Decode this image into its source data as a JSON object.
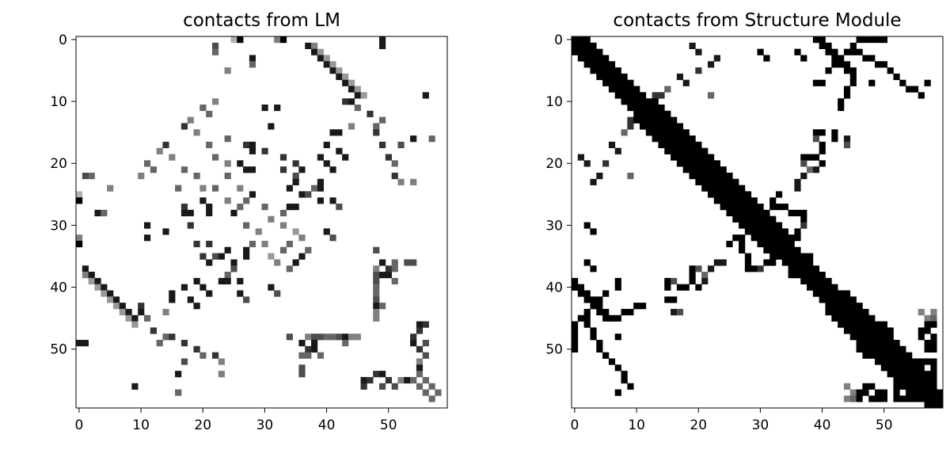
{
  "chart_data": [
    {
      "type": "heatmap",
      "title": "contacts from LM",
      "xlabel": "",
      "ylabel": "",
      "grid": false,
      "size": [
        60,
        60
      ],
      "xlim": [
        -0.5,
        59.5
      ],
      "ylim": [
        59.5,
        -0.5
      ],
      "xticks": [
        0,
        10,
        20,
        30,
        40,
        50
      ],
      "yticks": [
        0,
        10,
        20,
        30,
        40,
        50
      ],
      "colormap": "Greys",
      "value_range": [
        0,
        1
      ],
      "symmetric": true,
      "cells": [
        [
          0,
          26,
          1
        ],
        [
          0,
          33,
          1
        ],
        [
          0,
          49,
          0.9
        ],
        [
          0,
          32,
          0.5
        ],
        [
          0,
          25,
          0.3
        ],
        [
          1,
          37,
          0.9
        ],
        [
          1,
          38,
          0.5
        ],
        [
          1,
          49,
          0.9
        ],
        [
          2,
          38,
          0.9
        ],
        [
          2,
          39,
          0.4
        ],
        [
          3,
          39,
          0.9
        ],
        [
          3,
          40,
          0.4
        ],
        [
          4,
          40,
          0.9
        ],
        [
          4,
          41,
          0.4
        ],
        [
          5,
          41,
          0.9
        ],
        [
          5,
          42,
          0.4
        ],
        [
          6,
          42,
          0.9
        ],
        [
          6,
          43,
          0.4
        ],
        [
          7,
          43,
          0.9
        ],
        [
          7,
          44,
          0.4
        ],
        [
          8,
          44,
          0.9
        ],
        [
          8,
          45,
          0.4
        ],
        [
          9,
          45,
          0.9
        ],
        [
          9,
          46,
          0.4
        ],
        [
          9,
          56,
          0.9
        ],
        [
          10,
          44,
          0.9
        ],
        [
          10,
          43,
          0.8
        ],
        [
          11,
          30,
          0.9
        ],
        [
          11,
          32,
          0.9
        ],
        [
          11,
          45,
          0.6
        ],
        [
          12,
          47,
          0.8
        ],
        [
          13,
          49,
          0.6
        ],
        [
          14,
          17,
          0.8
        ],
        [
          14,
          31,
          0.9
        ],
        [
          14,
          44,
          0.5
        ],
        [
          14,
          48,
          0.6
        ],
        [
          15,
          41,
          0.9
        ],
        [
          15,
          42,
          0.9
        ],
        [
          15,
          48,
          0.8
        ],
        [
          16,
          24,
          0.6
        ],
        [
          16,
          54,
          0.9
        ],
        [
          16,
          57,
          0.6
        ],
        [
          17,
          27,
          0.8
        ],
        [
          17,
          28,
          0.9
        ],
        [
          17,
          40,
          0.9
        ],
        [
          17,
          49,
          0.8
        ],
        [
          17,
          52,
          0.7
        ],
        [
          18,
          28,
          0.9
        ],
        [
          18,
          30,
          0.8
        ],
        [
          18,
          42,
          0.9
        ],
        [
          19,
          33,
          0.8
        ],
        [
          19,
          39,
          0.9
        ],
        [
          19,
          43,
          0.9
        ],
        [
          19,
          50,
          0.8
        ],
        [
          20,
          26,
          0.9
        ],
        [
          20,
          35,
          0.8
        ],
        [
          20,
          40,
          0.9
        ],
        [
          20,
          51,
          0.6
        ],
        [
          21,
          27,
          0.9
        ],
        [
          21,
          28,
          0.9
        ],
        [
          21,
          33,
          0.8
        ],
        [
          21,
          36,
          0.9
        ],
        [
          21,
          41,
          0.9
        ],
        [
          22,
          35,
          0.7
        ],
        [
          22,
          51,
          0.8
        ],
        [
          23,
          35,
          0.9
        ],
        [
          23,
          39,
          0.9
        ],
        [
          23,
          52,
          0.5
        ],
        [
          23,
          54,
          0.5
        ],
        [
          24,
          34,
          0.9
        ],
        [
          24,
          38,
          0.6
        ],
        [
          24,
          39,
          0.9
        ],
        [
          25,
          28,
          0.9
        ],
        [
          25,
          36,
          0.9
        ],
        [
          25,
          37,
          0.7
        ],
        [
          26,
          39,
          0.9
        ],
        [
          26,
          41,
          0.9
        ],
        [
          27,
          34,
          0.9
        ],
        [
          27,
          35,
          0.9
        ],
        [
          27,
          42,
          0.7
        ],
        [
          28,
          33,
          0.6
        ],
        [
          31,
          40,
          0.9
        ],
        [
          32,
          41,
          0.7
        ],
        [
          33,
          34,
          0.6
        ],
        [
          34,
          37,
          0.6
        ],
        [
          34,
          48,
          0.7
        ],
        [
          35,
          36,
          0.9
        ],
        [
          36,
          49,
          0.9
        ],
        [
          36,
          51,
          0.6
        ],
        [
          36,
          53,
          0.7
        ],
        [
          36,
          54,
          0.7
        ],
        [
          37,
          48,
          0.5
        ],
        [
          37,
          50,
          0.8
        ],
        [
          37,
          51,
          0.6
        ],
        [
          38,
          48,
          0.7
        ],
        [
          38,
          49,
          0.9
        ],
        [
          38,
          50,
          0.9
        ],
        [
          39,
          48,
          0.7
        ],
        [
          39,
          51,
          0.6
        ],
        [
          40,
          48,
          0.6
        ],
        [
          41,
          48,
          0.6
        ],
        [
          42,
          48,
          0.7
        ],
        [
          43,
          48,
          0.9
        ],
        [
          43,
          49,
          0.6
        ],
        [
          44,
          48,
          0.5
        ],
        [
          45,
          48,
          0.5
        ],
        [
          46,
          55,
          0.9
        ],
        [
          46,
          56,
          0.8
        ],
        [
          47,
          55,
          0.8
        ],
        [
          48,
          54,
          0.8
        ],
        [
          49,
          54,
          0.9
        ],
        [
          49,
          56,
          0.7
        ],
        [
          50,
          55,
          0.8
        ],
        [
          51,
          56,
          0.7
        ],
        [
          52,
          55,
          0.5
        ],
        [
          53,
          55,
          0.9
        ],
        [
          54,
          55,
          0.6
        ],
        [
          55,
          56,
          0.6
        ],
        [
          56,
          57,
          0.6
        ],
        [
          57,
          58,
          0.6
        ],
        [
          1,
          22,
          0.7
        ],
        [
          2,
          22,
          0.6
        ],
        [
          3,
          28,
          0.9
        ],
        [
          4,
          28,
          0.6
        ],
        [
          5,
          24,
          0.5
        ],
        [
          10,
          22,
          0.5
        ],
        [
          11,
          20,
          0.6
        ],
        [
          12,
          21,
          0.6
        ],
        [
          13,
          18,
          0.5
        ],
        [
          15,
          19,
          0.5
        ],
        [
          17,
          21,
          0.6
        ],
        [
          19,
          22,
          0.6
        ],
        [
          20,
          24,
          0.5
        ],
        [
          22,
          24,
          0.6
        ],
        [
          24,
          26,
          0.5
        ],
        [
          26,
          27,
          0.6
        ],
        [
          27,
          30,
          0.6
        ],
        [
          29,
          31,
          0.5
        ],
        [
          30,
          33,
          0.5
        ],
        [
          31,
          35,
          0.4
        ],
        [
          32,
          36,
          0.5
        ]
      ]
    },
    {
      "type": "heatmap",
      "title": "contacts from Structure Module",
      "xlabel": "",
      "ylabel": "",
      "grid": false,
      "size": [
        60,
        60
      ],
      "xlim": [
        -0.5,
        59.5
      ],
      "ylim": [
        59.5,
        -0.5
      ],
      "xticks": [
        0,
        10,
        20,
        30,
        40,
        50
      ],
      "yticks": [
        0,
        10,
        20,
        30,
        40,
        50
      ],
      "colormap": "Greys",
      "value_range": [
        0,
        1
      ],
      "symmetric": true,
      "band_widths": [
        2,
        2,
        2,
        2,
        2,
        2,
        2,
        2,
        2,
        2,
        2,
        2,
        2,
        3,
        3,
        3,
        3,
        3,
        3,
        3,
        3,
        3,
        3,
        3,
        3,
        3,
        3,
        3,
        3,
        3,
        3,
        3,
        3,
        2,
        2,
        2,
        2,
        2,
        2,
        2,
        2,
        2,
        2,
        2,
        3,
        3,
        3,
        3,
        3,
        3,
        3,
        3,
        3,
        3,
        2,
        2,
        2,
        2,
        2,
        2
      ],
      "cells": [
        [
          0,
          39,
          1
        ],
        [
          0,
          40,
          1
        ],
        [
          1,
          40,
          1
        ],
        [
          1,
          41,
          1
        ],
        [
          2,
          41,
          1
        ],
        [
          2,
          42,
          1
        ],
        [
          3,
          42,
          1
        ],
        [
          3,
          43,
          1
        ],
        [
          4,
          43,
          1
        ],
        [
          4,
          44,
          1
        ],
        [
          5,
          44,
          1
        ],
        [
          5,
          45,
          1
        ],
        [
          6,
          45,
          1
        ],
        [
          7,
          45,
          1
        ],
        [
          8,
          44,
          1
        ],
        [
          9,
          44,
          1
        ],
        [
          10,
          43,
          1
        ],
        [
          11,
          43,
          1
        ],
        [
          7,
          48,
          1
        ],
        [
          7,
          57,
          1
        ],
        [
          9,
          22,
          0.6
        ],
        [
          3,
          23,
          0.9
        ],
        [
          4,
          22,
          0.9
        ],
        [
          5,
          20,
          0.8
        ],
        [
          6,
          17,
          0.7
        ],
        [
          8,
          15,
          0.6
        ],
        [
          9,
          14,
          0.8
        ],
        [
          10,
          12,
          0.9
        ],
        [
          11,
          13,
          0.9
        ],
        [
          12,
          10,
          0.9
        ],
        [
          13,
          9,
          0.8
        ],
        [
          2,
          30,
          1
        ],
        [
          3,
          31,
          1
        ],
        [
          2,
          36,
          1
        ],
        [
          3,
          37,
          1
        ],
        [
          17,
          6,
          0.9
        ],
        [
          18,
          7,
          0.9
        ],
        [
          19,
          1,
          0.9
        ],
        [
          20,
          2,
          0.9
        ],
        [
          15,
          42,
          1
        ],
        [
          16,
          42,
          1
        ],
        [
          17,
          40,
          1
        ],
        [
          18,
          40,
          1
        ],
        [
          19,
          39,
          1
        ],
        [
          16,
          44,
          0.9
        ],
        [
          17,
          44,
          0.7
        ],
        [
          20,
          40,
          1
        ],
        [
          21,
          39,
          0.9
        ],
        [
          22,
          37,
          0.9
        ],
        [
          23,
          36,
          0.9
        ],
        [
          24,
          36,
          0.9
        ],
        [
          25,
          33,
          1
        ],
        [
          26,
          32,
          1
        ],
        [
          27,
          32,
          1
        ],
        [
          28,
          31,
          1
        ],
        [
          28,
          37,
          1
        ],
        [
          29,
          37,
          1
        ],
        [
          30,
          37,
          0.8
        ],
        [
          31,
          36,
          1
        ],
        [
          32,
          36,
          1
        ],
        [
          33,
          27,
          1
        ],
        [
          34,
          27,
          1
        ],
        [
          35,
          28,
          1
        ],
        [
          36,
          28,
          1
        ],
        [
          37,
          19,
          1
        ],
        [
          38,
          19,
          1
        ],
        [
          39,
          15,
          1
        ],
        [
          40,
          15,
          1
        ],
        [
          37,
          20,
          0.7
        ],
        [
          38,
          21,
          0.6
        ],
        [
          39,
          16,
          0.7
        ],
        [
          36,
          35,
          1
        ],
        [
          37,
          35,
          1
        ],
        [
          38,
          35,
          1
        ],
        [
          39,
          7,
          1
        ],
        [
          40,
          7,
          1
        ],
        [
          41,
          5,
          1
        ],
        [
          42,
          4,
          1
        ],
        [
          43,
          3,
          1
        ],
        [
          44,
          2,
          1
        ],
        [
          45,
          1,
          1
        ],
        [
          46,
          0,
          1
        ],
        [
          47,
          0,
          1
        ],
        [
          48,
          0,
          1
        ],
        [
          49,
          0,
          1
        ],
        [
          50,
          0,
          1
        ],
        [
          51,
          5,
          1
        ],
        [
          52,
          6,
          1
        ],
        [
          53,
          7,
          1
        ],
        [
          54,
          8,
          1
        ],
        [
          55,
          8,
          1
        ],
        [
          56,
          9,
          1
        ],
        [
          45,
          2,
          1
        ],
        [
          46,
          2,
          1
        ],
        [
          47,
          3,
          1
        ],
        [
          48,
          3,
          1
        ],
        [
          49,
          4,
          1
        ],
        [
          50,
          4,
          1
        ],
        [
          46,
          57,
          1
        ],
        [
          47,
          57,
          1
        ],
        [
          48,
          58,
          1
        ],
        [
          49,
          58,
          1
        ],
        [
          50,
          58,
          1
        ],
        [
          45,
          58,
          0.6
        ],
        [
          44,
          58,
          0.5
        ],
        [
          52,
          56,
          1
        ],
        [
          53,
          56,
          1
        ],
        [
          54,
          57,
          1
        ],
        [
          55,
          58,
          1
        ],
        [
          56,
          47,
          1
        ],
        [
          57,
          47,
          1
        ],
        [
          58,
          46,
          1
        ],
        [
          56,
          48,
          1
        ],
        [
          57,
          49,
          1
        ],
        [
          58,
          49,
          1
        ],
        [
          57,
          50,
          1
        ],
        [
          58,
          50,
          0.6
        ],
        [
          57,
          52,
          1
        ],
        [
          58,
          52,
          1
        ],
        [
          56,
          44,
          0.5
        ],
        [
          57,
          45,
          0.5
        ],
        [
          48,
          48,
          1
        ],
        [
          49,
          49,
          1
        ],
        [
          50,
          51,
          1
        ],
        [
          51,
          53,
          1
        ],
        [
          52,
          54,
          1
        ],
        [
          46,
          50,
          1
        ],
        [
          47,
          50,
          1
        ],
        [
          47,
          51,
          1
        ],
        [
          48,
          51,
          1
        ],
        [
          49,
          52,
          1
        ],
        [
          44,
          46,
          1
        ],
        [
          45,
          47,
          1
        ],
        [
          46,
          48,
          1
        ],
        [
          53,
          58,
          1
        ],
        [
          54,
          58,
          1
        ]
      ]
    }
  ]
}
